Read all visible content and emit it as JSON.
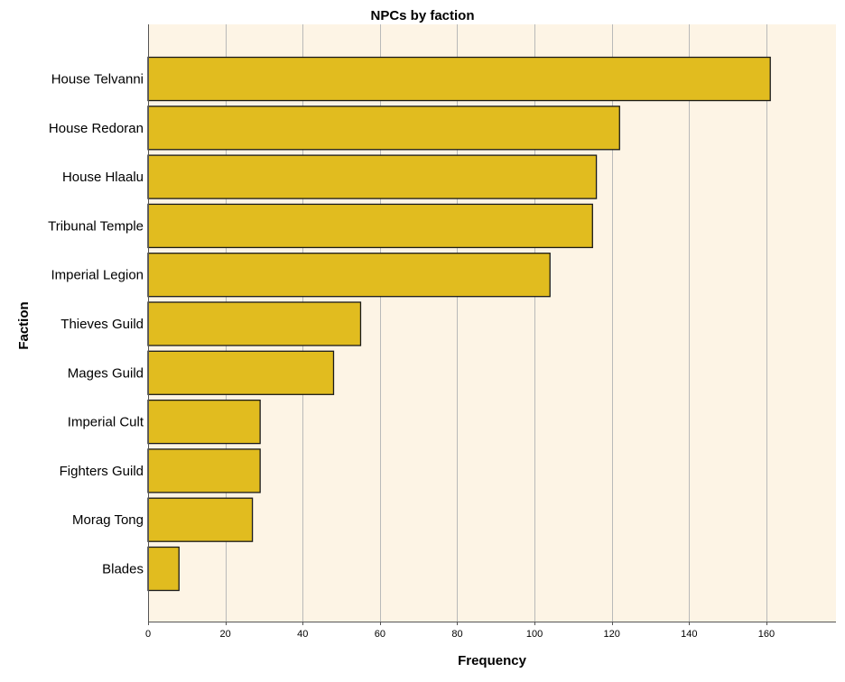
{
  "colors": {
    "plot_background": "#fdf4e5",
    "bar_fill": "#e1bc1f",
    "bar_stroke": "#1a1a1a",
    "gridline": "#b9b9b9",
    "axis": "#555555"
  },
  "chart_data": {
    "type": "bar",
    "orientation": "horizontal",
    "title": "NPCs by faction",
    "xlabel": "Frequency",
    "ylabel": "Faction",
    "xlim": [
      0,
      178
    ],
    "xticks": [
      0,
      20,
      40,
      60,
      80,
      100,
      120,
      140,
      160
    ],
    "grid": true,
    "categories": [
      "House Telvanni",
      "House Redoran",
      "House Hlaalu",
      "Tribunal Temple",
      "Imperial Legion",
      "Thieves Guild",
      "Mages Guild",
      "Imperial Cult",
      "Fighters Guild",
      "Morag Tong",
      "Blades"
    ],
    "values": [
      161,
      122,
      116,
      115,
      104,
      55,
      48,
      29,
      29,
      27,
      8
    ]
  }
}
